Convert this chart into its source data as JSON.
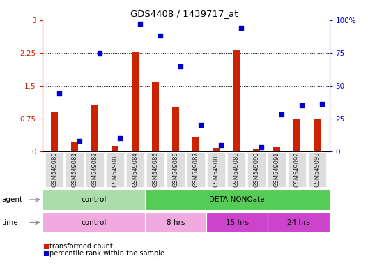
{
  "title": "GDS4408 / 1439717_at",
  "samples": [
    "GSM549080",
    "GSM549081",
    "GSM549082",
    "GSM549083",
    "GSM549084",
    "GSM549085",
    "GSM549086",
    "GSM549087",
    "GSM549088",
    "GSM549089",
    "GSM549090",
    "GSM549091",
    "GSM549092",
    "GSM549093"
  ],
  "transformed_count": [
    0.9,
    0.22,
    1.05,
    0.12,
    2.27,
    1.58,
    1.0,
    0.32,
    0.08,
    2.32,
    0.04,
    0.11,
    0.73,
    0.73
  ],
  "percentile_rank": [
    44,
    8,
    75,
    10,
    97,
    88,
    65,
    20,
    5,
    94,
    3,
    28,
    35,
    36
  ],
  "ylim_left": [
    0,
    3
  ],
  "ylim_right": [
    0,
    100
  ],
  "yticks_left": [
    0,
    0.75,
    1.5,
    2.25,
    3
  ],
  "yticks_right": [
    0,
    25,
    50,
    75,
    100
  ],
  "ytick_labels_left": [
    "0",
    "0.75",
    "1.5",
    "2.25",
    "3"
  ],
  "ytick_labels_right": [
    "0",
    "25",
    "50",
    "75",
    "100%"
  ],
  "left_axis_color": "#cc2200",
  "right_axis_color": "#0000cc",
  "bar_color_red": "#cc2200",
  "bar_color_blue": "#0000cc",
  "agent_groups": [
    {
      "label": "control",
      "start": 0,
      "end": 5,
      "color": "#aaddaa"
    },
    {
      "label": "DETA-NONOate",
      "start": 5,
      "end": 14,
      "color": "#55cc55"
    }
  ],
  "time_groups": [
    {
      "label": "control",
      "start": 0,
      "end": 5,
      "color": "#f0aae0"
    },
    {
      "label": "8 hrs",
      "start": 5,
      "end": 8,
      "color": "#f0aae0"
    },
    {
      "label": "15 hrs",
      "start": 8,
      "end": 11,
      "color": "#cc44cc"
    },
    {
      "label": "24 hrs",
      "start": 11,
      "end": 14,
      "color": "#cc44cc"
    }
  ],
  "background_color": "#ffffff",
  "figure_width": 5.28,
  "figure_height": 3.84
}
